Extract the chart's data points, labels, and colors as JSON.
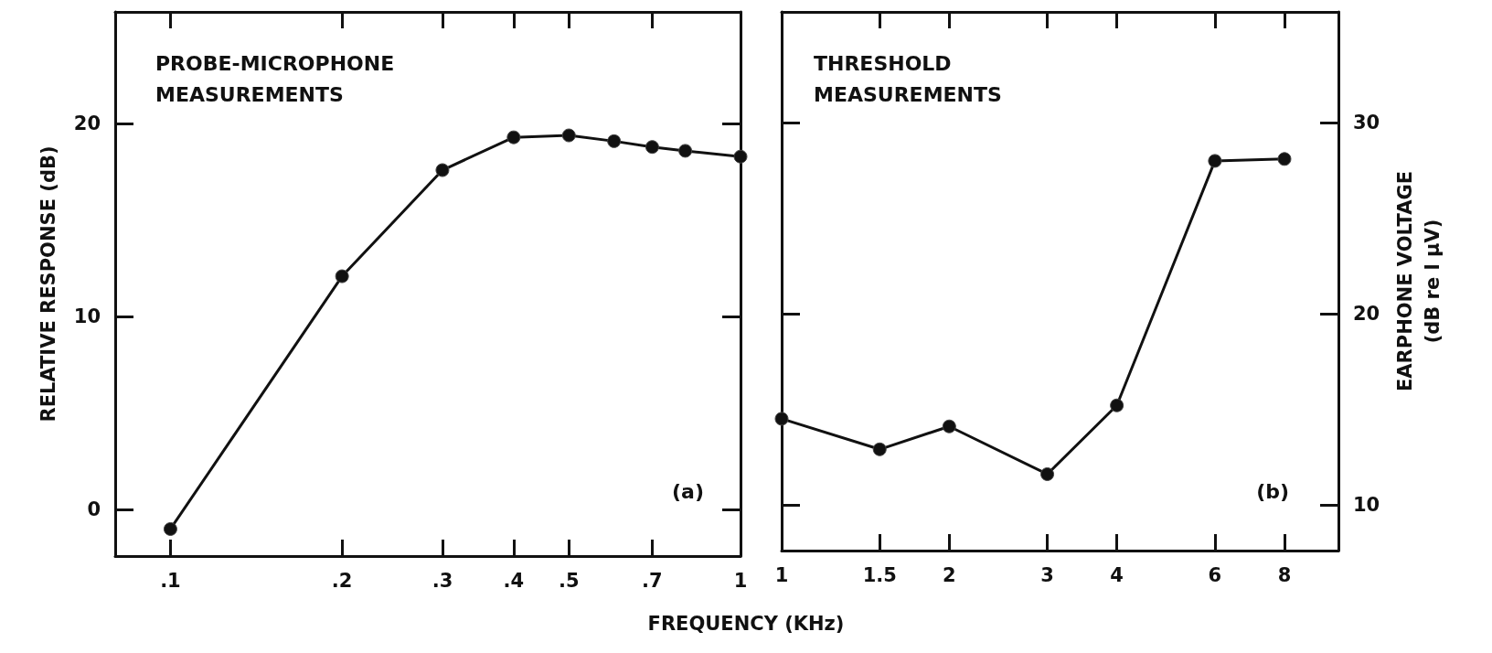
{
  "chart_data": [
    {
      "type": "line",
      "xlabel": "FREQUENCY (KHz)",
      "ylabel": "RELATIVE RESPONSE (dB)",
      "annotations": [
        "PROBE-MICROPHONE\nMEASUREMENTS",
        "(a)"
      ],
      "log": "x",
      "grid": false,
      "marker": "circle",
      "line_style": "solid",
      "x": [
        0.1,
        0.2,
        0.3,
        0.4,
        0.5,
        0.6,
        0.7,
        0.8,
        1
      ],
      "series": [
        {
          "color": "#111111",
          "values": [
            -1,
            12.1,
            17.6,
            19.3,
            19.4,
            19.1,
            18.8,
            18.6,
            18.3
          ]
        }
      ],
      "xlim": [
        0.08,
        1
      ],
      "xticks": [
        {
          "value": 0.1,
          "label": ".1"
        },
        {
          "value": 0.2,
          "label": ".2"
        },
        {
          "value": 0.3,
          "label": ".3"
        },
        {
          "value": 0.4,
          "label": ".4"
        },
        {
          "value": 0.5,
          "label": ".5"
        },
        {
          "value": 0.7,
          "label": ".7"
        },
        1
      ],
      "ylim": [
        -2.4,
        25.8
      ],
      "yticks": [
        0,
        10,
        20
      ]
    },
    {
      "type": "line",
      "y2label": "EARPHONE VOLTAGE\n(dB re l μV)",
      "annotations": [
        "THRESHOLD\nMEASUREMENTS",
        "(b)"
      ],
      "log": "x",
      "grid": false,
      "marker": "circle",
      "line_style": "solid",
      "x": [
        1,
        1.5,
        2,
        3,
        4,
        6,
        8
      ],
      "series": [
        {
          "color": "#111111",
          "axis": "y2",
          "values": [
            14.5,
            12.9,
            14.1,
            11.6,
            15.2,
            28,
            28.1
          ]
        }
      ],
      "xlim": [
        1,
        10
      ],
      "xticks": [
        1,
        1.5,
        2,
        3,
        4,
        6,
        8
      ],
      "y2lim": [
        7.6,
        35.8
      ],
      "y2ticks": [
        10,
        20,
        30
      ]
    }
  ]
}
